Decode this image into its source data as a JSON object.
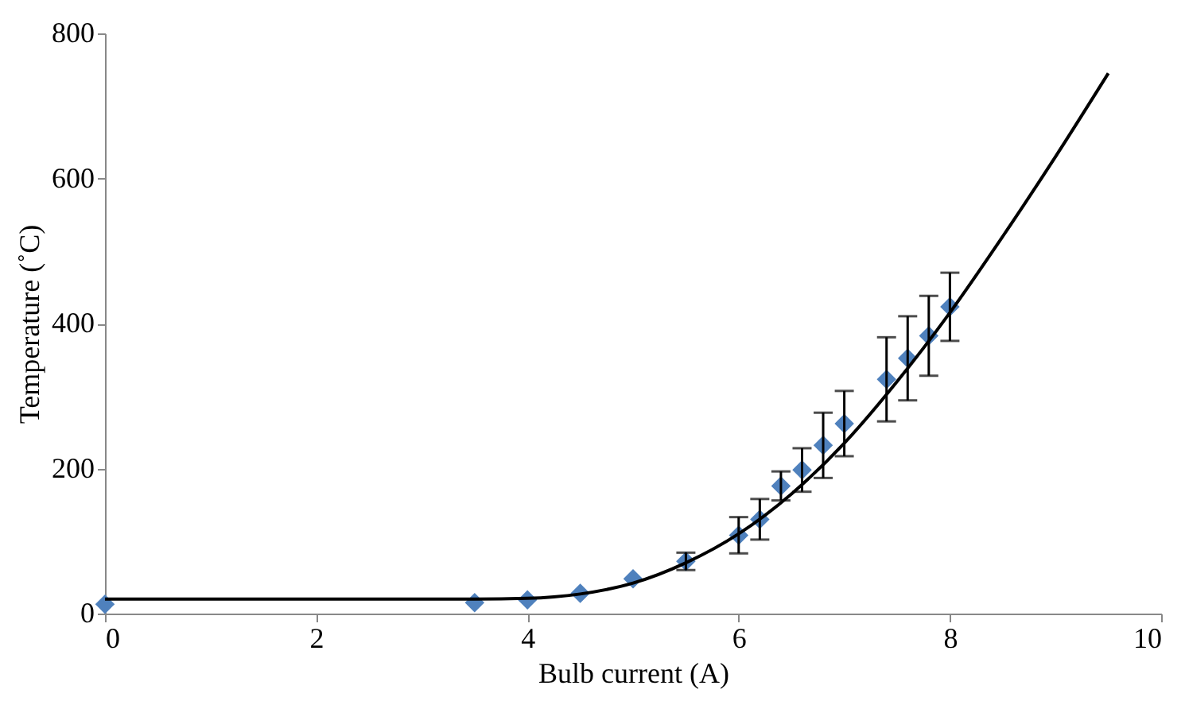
{
  "chart_data": {
    "type": "scatter",
    "xlabel": "Bulb current (A)",
    "ylabel": "Temperature (˚C)",
    "xlim": [
      0,
      10
    ],
    "xticks": [
      0,
      2,
      4,
      6,
      8,
      10
    ],
    "ylim": [
      0,
      800
    ],
    "yticks": [
      0,
      200,
      400,
      600,
      800
    ],
    "grid": false,
    "series": [
      {
        "color": "#4f81bd",
        "marker": "diamond",
        "x": [
          0,
          3.5,
          4,
          4.5,
          5,
          5.5,
          6,
          6.2,
          6.4,
          6.6,
          6.8,
          7.0,
          7.4,
          7.6,
          7.8,
          8.0
        ],
        "values": [
          13,
          15,
          19,
          28,
          48,
          72,
          108,
          130,
          176,
          198,
          232,
          262,
          323,
          352,
          383,
          423
        ],
        "errors": [
          null,
          null,
          null,
          null,
          null,
          12,
          25,
          28,
          20,
          30,
          45,
          45,
          58,
          58,
          55,
          47
        ]
      },
      {
        "type": "line",
        "color": "#000000",
        "marker": "none",
        "line_style": "solid",
        "x": [
          0,
          1,
          2,
          3,
          3.5,
          4,
          4.25,
          4.5,
          5,
          5.5,
          6,
          6.5,
          7,
          7.5,
          8,
          8.5,
          9,
          9.5
        ],
        "values": [
          20,
          20,
          20,
          20,
          20,
          21,
          23,
          27,
          42,
          70,
          110,
          165,
          235,
          320,
          415,
          520,
          630,
          745
        ]
      }
    ]
  }
}
